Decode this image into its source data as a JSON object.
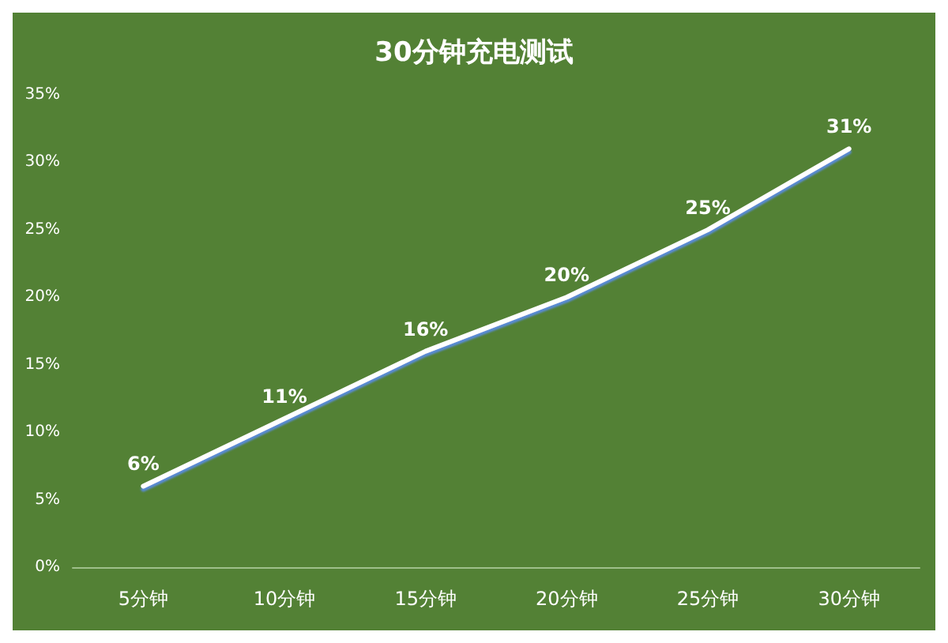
{
  "chart_data": {
    "type": "line",
    "title": "30分钟充电测试",
    "categories": [
      "5分钟",
      "10分钟",
      "15分钟",
      "20分钟",
      "25分钟",
      "30分钟"
    ],
    "series": [
      {
        "color": "#ffffff",
        "values": [
          6,
          11,
          16,
          20,
          25,
          31
        ],
        "value_labels": [
          "6%",
          "11%",
          "16%",
          "20%",
          "25%",
          "31%"
        ]
      }
    ],
    "ylim": [
      0,
      35
    ],
    "yticks": [
      {
        "value": 0,
        "label": "0%"
      },
      {
        "value": 5,
        "label": "5%"
      },
      {
        "value": 10,
        "label": "10%"
      },
      {
        "value": 15,
        "label": "15%"
      },
      {
        "value": 20,
        "label": "20%"
      },
      {
        "value": 25,
        "label": "25%"
      },
      {
        "value": 30,
        "label": "30%"
      },
      {
        "value": 35,
        "label": "35%"
      }
    ],
    "grid": false,
    "marker": "none",
    "line_style": "solid"
  }
}
